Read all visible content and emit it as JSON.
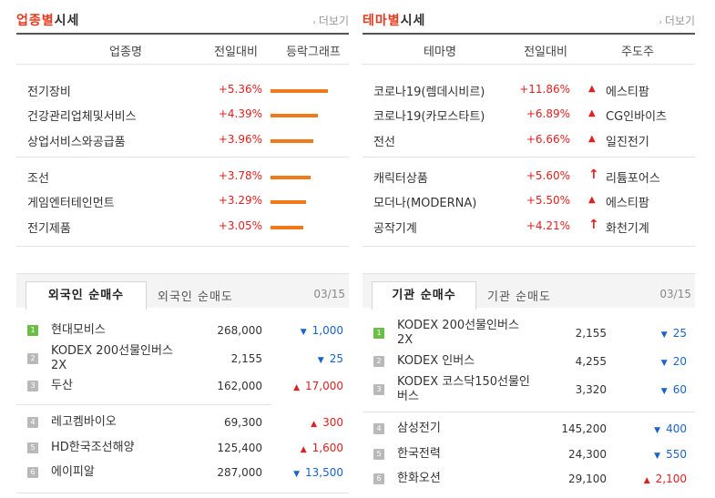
{
  "sector": {
    "title_hl": "업종별",
    "title_rest": "시세",
    "more": "더보기",
    "headers": [
      "업종명",
      "전일대비",
      "등락그래프"
    ],
    "rows": [
      {
        "name": "전기장비",
        "pct": "+5.36%",
        "value": 5.36
      },
      {
        "name": "건강관리업체및서비스",
        "pct": "+4.39%",
        "value": 4.39
      },
      {
        "name": "상업서비스와공급품",
        "pct": "+3.96%",
        "value": 3.96
      },
      {
        "name": "조선",
        "pct": "+3.78%",
        "value": 3.78
      },
      {
        "name": "게임엔터테인먼트",
        "pct": "+3.29%",
        "value": 3.29
      },
      {
        "name": "전기제품",
        "pct": "+3.05%",
        "value": 3.05
      }
    ]
  },
  "theme": {
    "title_hl": "테마별",
    "title_rest": "시세",
    "more": "더보기",
    "headers": [
      "테마명",
      "전일대비",
      "주도주"
    ],
    "rows": [
      {
        "name": "코로나19(렘데시비르)",
        "pct": "+11.86%",
        "icon": "up-triangle-icon",
        "lead": "에스티팜"
      },
      {
        "name": "코로나19(카모스타트)",
        "pct": "+6.89%",
        "icon": "up-triangle-icon",
        "lead": "CG인바이츠"
      },
      {
        "name": "전선",
        "pct": "+6.66%",
        "icon": "up-triangle-icon",
        "lead": "일진전기"
      },
      {
        "name": "캐릭터상품",
        "pct": "+5.60%",
        "icon": "up-arrow-icon",
        "lead": "리튬포어스"
      },
      {
        "name": "모더나(MODERNA)",
        "pct": "+5.50%",
        "icon": "up-triangle-icon",
        "lead": "에스티팜"
      },
      {
        "name": "공작기계",
        "pct": "+4.21%",
        "icon": "up-arrow-icon",
        "lead": "화천기계"
      }
    ]
  },
  "foreign": {
    "tab_active": "외국인 순매수",
    "tab_inactive": "외국인 순매도",
    "date": "03/15",
    "rows": [
      {
        "rank": "1",
        "name": "현대모비스",
        "price": "268,000",
        "dir": "down",
        "change": "1,000"
      },
      {
        "rank": "2",
        "name": "KODEX 200선물인버스2X",
        "price": "2,155",
        "dir": "down",
        "change": "25"
      },
      {
        "rank": "3",
        "name": "두산",
        "price": "162,000",
        "dir": "up",
        "change": "17,000"
      },
      {
        "rank": "4",
        "name": "레고켐바이오",
        "price": "69,300",
        "dir": "up",
        "change": "300"
      },
      {
        "rank": "5",
        "name": "HD한국조선해양",
        "price": "125,400",
        "dir": "up",
        "change": "1,600"
      },
      {
        "rank": "6",
        "name": "에이피알",
        "price": "287,000",
        "dir": "down",
        "change": "13,500"
      }
    ]
  },
  "institution": {
    "tab_active": "기관 순매수",
    "tab_inactive": "기관 순매도",
    "date": "03/15",
    "rows": [
      {
        "rank": "1",
        "name": "KODEX 200선물인버스2X",
        "price": "2,155",
        "dir": "down",
        "change": "25"
      },
      {
        "rank": "2",
        "name": "KODEX 인버스",
        "price": "4,255",
        "dir": "down",
        "change": "20"
      },
      {
        "rank": "3",
        "name": "KODEX 코스닥150선물인버스",
        "price": "3,320",
        "dir": "down",
        "change": "60"
      },
      {
        "rank": "4",
        "name": "삼성전기",
        "price": "145,200",
        "dir": "down",
        "change": "400"
      },
      {
        "rank": "5",
        "name": "한국전력",
        "price": "24,300",
        "dir": "down",
        "change": "550"
      },
      {
        "rank": "6",
        "name": "한화오션",
        "price": "29,100",
        "dir": "up",
        "change": "2,100"
      }
    ]
  }
}
